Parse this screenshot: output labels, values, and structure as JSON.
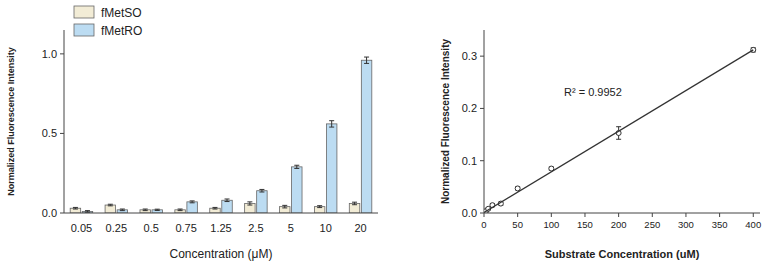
{
  "chart_data": [
    {
      "type": "bar",
      "categories": [
        "0.05",
        "0.25",
        "0.5",
        "0.75",
        "1.25",
        "2.5",
        "5",
        "10",
        "20"
      ],
      "series": [
        {
          "name": "fMetSO",
          "color": "#f2ecd6",
          "values": [
            0.03,
            0.05,
            0.02,
            0.02,
            0.03,
            0.06,
            0.04,
            0.04,
            0.06
          ],
          "errors": [
            0.005,
            0.005,
            0.005,
            0.005,
            0.005,
            0.01,
            0.008,
            0.006,
            0.008
          ]
        },
        {
          "name": "fMetRO",
          "color": "#bcdcf2",
          "values": [
            0.01,
            0.02,
            0.02,
            0.07,
            0.08,
            0.14,
            0.29,
            0.56,
            0.96
          ],
          "errors": [
            0.005,
            0.005,
            0.004,
            0.006,
            0.008,
            0.008,
            0.01,
            0.02,
            0.02
          ]
        }
      ],
      "x_label": "Concentration (μM)",
      "y_label": "Normalized Fluorescence Intensity",
      "ylim": [
        0,
        1.15
      ],
      "yticks": [
        {
          "value": 0,
          "label": "0.0"
        },
        0.5,
        {
          "value": 1,
          "label": "1.0"
        }
      ],
      "legend": "upper left",
      "grid": false
    },
    {
      "type": "scatter",
      "x": [
        0,
        3.125,
        6.25,
        12.5,
        25,
        50,
        100,
        200,
        400
      ],
      "series": [
        {
          "type": "scatter",
          "color": "#333333",
          "marker": "circle",
          "values": [
            0.001,
            0.004,
            0.008,
            0.015,
            0.018,
            0.047,
            0.085,
            0.153,
            0.312
          ],
          "errors": [
            0.002,
            0.002,
            0.002,
            0.003,
            0.003,
            0.003,
            0.003,
            0.012,
            0.004
          ]
        },
        {
          "type": "line",
          "color": "#333333",
          "line_style": "solid",
          "x": [
            0,
            400
          ],
          "values": [
            0.001,
            0.312
          ]
        }
      ],
      "annotations": [
        "R² = 0.9952"
      ],
      "x_label": "Substrate Concentration (uM)",
      "y_label": "Normalized Fluorescence Intensity",
      "xlim": [
        0,
        410
      ],
      "xticks": [
        0,
        50,
        100,
        150,
        200,
        250,
        300,
        350,
        400
      ],
      "ylim": [
        0,
        0.35
      ],
      "yticks": [
        {
          "value": 0,
          "label": "0.0"
        },
        0.1,
        0.2,
        0.3
      ],
      "grid": false
    }
  ]
}
